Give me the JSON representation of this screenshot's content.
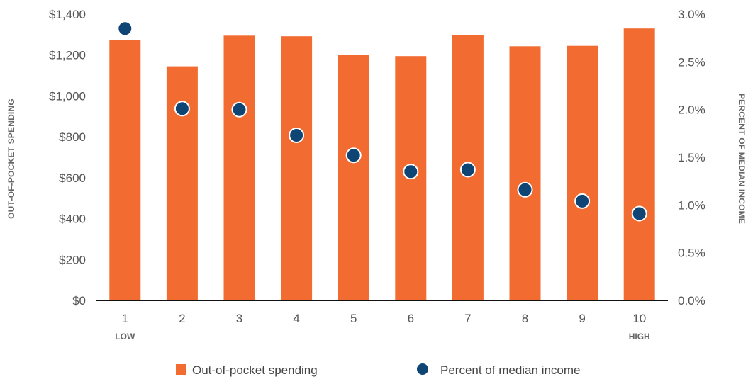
{
  "chart_data": {
    "type": "bar",
    "categories": [
      "1",
      "2",
      "3",
      "4",
      "5",
      "6",
      "7",
      "8",
      "9",
      "10"
    ],
    "category_sublabels": {
      "first": "LOW",
      "last": "HIGH"
    },
    "series": [
      {
        "name": "Out-of-pocket spending",
        "type": "bar",
        "axis": "left",
        "color": "#F26B30",
        "values": [
          1275,
          1145,
          1295,
          1292,
          1202,
          1195,
          1298,
          1243,
          1245,
          1330
        ]
      },
      {
        "name": "Percent of median income",
        "type": "scatter",
        "axis": "right",
        "color": "#0E4574",
        "values": [
          2.85,
          2.01,
          2.0,
          1.73,
          1.52,
          1.35,
          1.37,
          1.16,
          1.04,
          0.91
        ]
      }
    ],
    "y_left": {
      "label": "OUT-OF-POCKET SPENDING",
      "ylim": [
        0,
        1400
      ],
      "ticks": [
        0,
        200,
        400,
        600,
        800,
        1000,
        1200,
        1400
      ],
      "tick_labels": [
        "$0",
        "$200",
        "$400",
        "$600",
        "$800",
        "$1,000",
        "$1,200",
        "$1,400"
      ]
    },
    "y_right": {
      "label": "PERCENT OF MEDIAN INCOME",
      "ylim": [
        0,
        3.0
      ],
      "ticks": [
        0,
        0.5,
        1.0,
        1.5,
        2.0,
        2.5,
        3.0
      ],
      "tick_labels": [
        "0.0%",
        "0.5%",
        "1.0%",
        "1.5%",
        "2.0%",
        "2.5%",
        "3.0%"
      ]
    },
    "grid": false,
    "legend_position": "bottom"
  }
}
